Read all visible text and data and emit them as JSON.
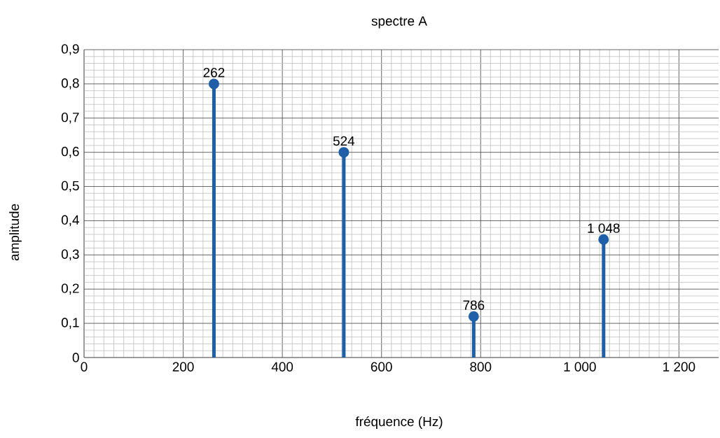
{
  "chart_data": {
    "type": "lollipop",
    "title": "spectre A",
    "xlabel": "fréquence (Hz)",
    "ylabel": "amplitude",
    "x": [
      262,
      524,
      786,
      1048
    ],
    "values": [
      0.8,
      0.6,
      0.12,
      0.345
    ],
    "color": "#1f5fa8",
    "marker": "circle",
    "grid": true,
    "xlim": [
      0,
      1280
    ],
    "ylim": [
      0,
      0.9
    ],
    "xticks": [
      0,
      200,
      400,
      600,
      800,
      {
        "value": 1000,
        "label": "1 000"
      },
      {
        "value": 1200,
        "label": "1 200"
      }
    ],
    "yticks": [
      0,
      {
        "value": 0.1,
        "label": "0,1"
      },
      {
        "value": 0.2,
        "label": "0,2"
      },
      {
        "value": 0.3,
        "label": "0,3"
      },
      {
        "value": 0.4,
        "label": "0,4"
      },
      {
        "value": 0.5,
        "label": "0,5"
      },
      {
        "value": 0.6,
        "label": "0,6"
      },
      {
        "value": 0.7,
        "label": "0,7"
      },
      {
        "value": 0.8,
        "label": "0,8"
      },
      {
        "value": 0.9,
        "label": "0,9"
      }
    ],
    "annotations": [
      {
        "text": "262",
        "x": 262,
        "y": 0.8
      },
      {
        "text": "524",
        "x": 524,
        "y": 0.6
      },
      {
        "text": "786",
        "x": 786,
        "y": 0.12
      },
      {
        "text": "1 048",
        "x": 1048,
        "y": 0.345
      }
    ]
  }
}
